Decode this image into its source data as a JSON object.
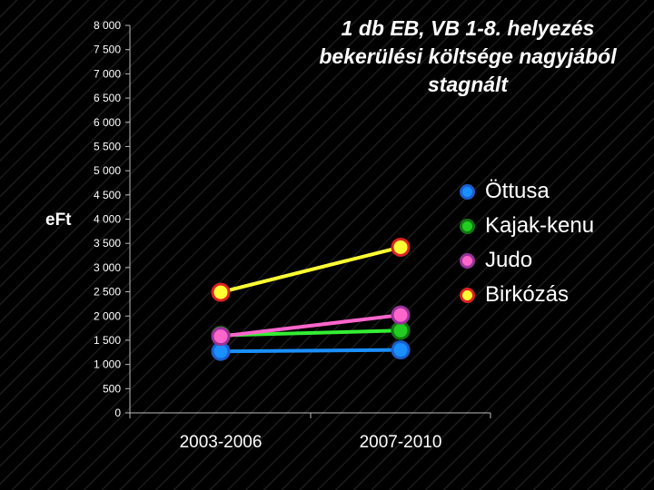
{
  "title": "1 db EB, VB 1-8. helyezés bekerülési költsége nagyjából stagnált",
  "side_label": "eFt",
  "chart_data": {
    "type": "line",
    "categories": [
      "2003-2006",
      "2007-2010"
    ],
    "ylim": [
      0,
      8000
    ],
    "yticks": [
      "0",
      "500",
      "1 000",
      "1 500",
      "2 000",
      "2 500",
      "3 000",
      "3 500",
      "4 000",
      "4 500",
      "5 000",
      "5 500",
      "6 000",
      "6 500",
      "7 000",
      "7 500",
      "8 000"
    ],
    "ytick_values": [
      0,
      500,
      1000,
      1500,
      2000,
      2500,
      3000,
      3500,
      4000,
      4500,
      5000,
      5500,
      6000,
      6500,
      7000,
      7500,
      8000
    ],
    "legend_position": "right",
    "series": [
      {
        "name": "Öttusa",
        "values": [
          1270,
          1300
        ],
        "line_color": "#1a8fff",
        "marker_color": "#1a8fff",
        "marker_border": "#1a5fcc"
      },
      {
        "name": "Kajak-kenu",
        "values": [
          1600,
          1700
        ],
        "line_color": "#33ee33",
        "marker_color": "#22cc22",
        "marker_border": "#117711"
      },
      {
        "name": "Judo",
        "values": [
          1580,
          2020
        ],
        "line_color": "#ff66cc",
        "marker_color": "#ff66cc",
        "marker_border": "#993399"
      },
      {
        "name": "Birkózás",
        "values": [
          2490,
          3420
        ],
        "line_color": "#ffff33",
        "marker_color": "#ffff33",
        "marker_border": "#dd2222"
      }
    ]
  }
}
